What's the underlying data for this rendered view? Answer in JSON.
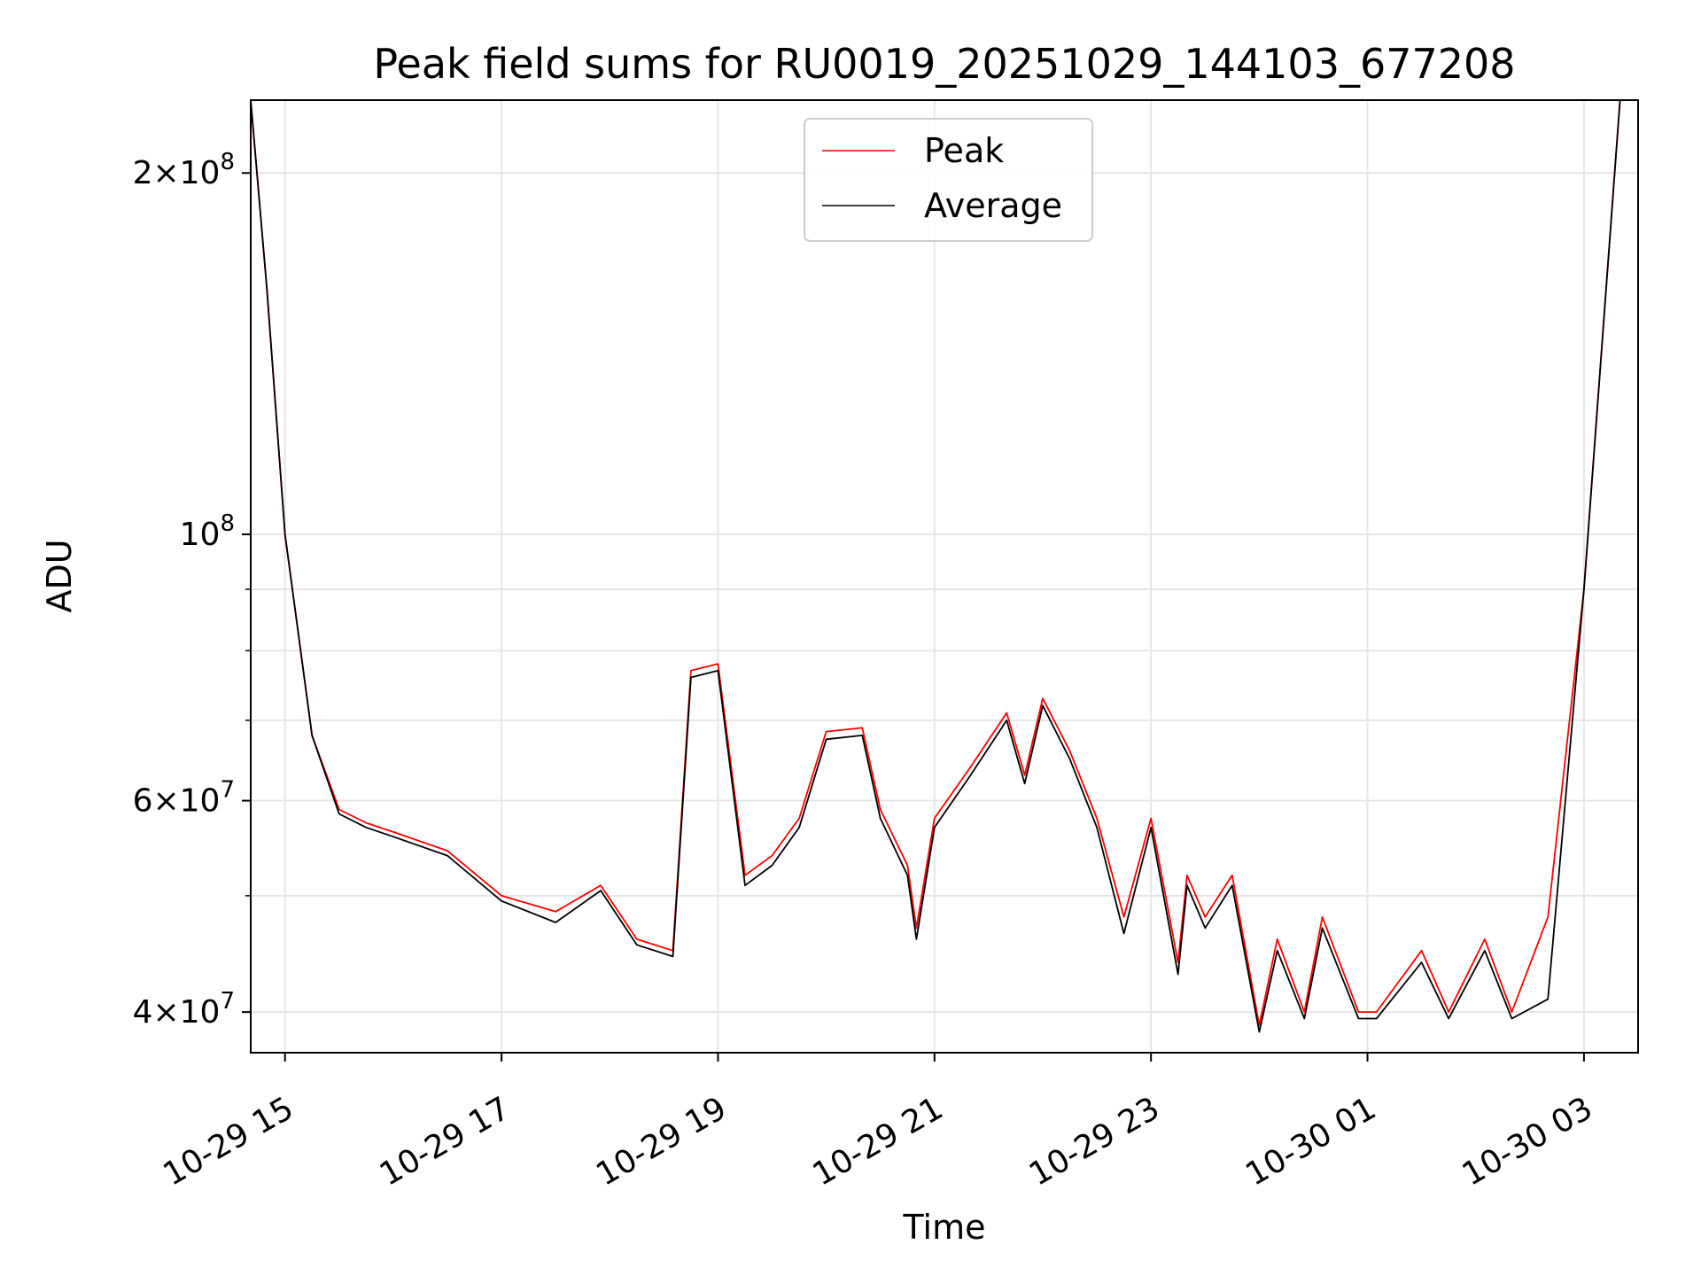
{
  "chart_data": {
    "type": "line",
    "title": "Peak field sums for RU0019_20251029_144103_677208",
    "xlabel": "Time",
    "ylabel": "ADU",
    "yscale": "log",
    "ylim": [
      37000000,
      230000000
    ],
    "xlim": [
      "2025-10-29 14:41",
      "2025-10-30 03:30"
    ],
    "grid": true,
    "legend": "top-center",
    "x_ticks": [
      "10-29 15",
      "10-29 17",
      "10-29 19",
      "10-29 21",
      "10-29 23",
      "10-30 01",
      "10-30 03"
    ],
    "y_ticks": [
      {
        "value": 40000000,
        "mantissa": "4",
        "exponent": "7"
      },
      {
        "value": 60000000,
        "mantissa": "6",
        "exponent": "7"
      },
      {
        "value": 100000000,
        "mantissa": "",
        "exponent": "8"
      },
      {
        "value": 200000000,
        "mantissa": "2",
        "exponent": "8"
      }
    ],
    "x": [
      "2025-10-29 14:41",
      "2025-10-29 14:50",
      "2025-10-29 15:00",
      "2025-10-29 15:15",
      "2025-10-29 15:30",
      "2025-10-29 15:45",
      "2025-10-29 16:00",
      "2025-10-29 16:30",
      "2025-10-29 17:00",
      "2025-10-29 17:30",
      "2025-10-29 17:55",
      "2025-10-29 18:15",
      "2025-10-29 18:35",
      "2025-10-29 18:45",
      "2025-10-29 19:00",
      "2025-10-29 19:15",
      "2025-10-29 19:30",
      "2025-10-29 19:45",
      "2025-10-29 20:00",
      "2025-10-29 20:20",
      "2025-10-29 20:30",
      "2025-10-29 20:45",
      "2025-10-29 20:50",
      "2025-10-29 21:00",
      "2025-10-29 21:20",
      "2025-10-29 21:40",
      "2025-10-29 21:50",
      "2025-10-29 22:00",
      "2025-10-29 22:15",
      "2025-10-29 22:30",
      "2025-10-29 22:45",
      "2025-10-29 23:00",
      "2025-10-29 23:15",
      "2025-10-29 23:20",
      "2025-10-29 23:30",
      "2025-10-29 23:45",
      "2025-10-30 00:00",
      "2025-10-30 00:10",
      "2025-10-30 00:25",
      "2025-10-30 00:35",
      "2025-10-30 00:55",
      "2025-10-30 01:05",
      "2025-10-30 01:30",
      "2025-10-30 01:45",
      "2025-10-30 02:05",
      "2025-10-30 02:20",
      "2025-10-30 02:40",
      "2025-10-30 03:00",
      "2025-10-30 03:20"
    ],
    "series": [
      {
        "name": "Peak",
        "color": "#ff0000",
        "values": [
          230000000,
          160000000,
          100000000,
          68000000,
          59000000,
          57500000,
          56500000,
          54500000,
          50000000,
          48500000,
          51000000,
          46000000,
          45000000,
          77000000,
          78000000,
          52000000,
          54000000,
          58000000,
          68500000,
          69000000,
          59000000,
          53000000,
          47000000,
          58000000,
          64000000,
          71000000,
          63000000,
          73000000,
          66000000,
          58000000,
          48000000,
          58000000,
          44000000,
          52000000,
          48000000,
          52000000,
          39000000,
          46000000,
          40000000,
          48000000,
          40000000,
          40000000,
          45000000,
          40000000,
          46000000,
          40000000,
          48000000,
          90000000,
          230000000
        ]
      },
      {
        "name": "Average",
        "color": "#000000",
        "values": [
          230000000,
          160000000,
          100000000,
          68000000,
          58500000,
          57000000,
          56000000,
          54000000,
          49500000,
          47500000,
          50500000,
          45500000,
          44500000,
          76000000,
          77000000,
          51000000,
          53000000,
          57000000,
          67500000,
          68000000,
          58000000,
          52000000,
          46000000,
          57000000,
          63000000,
          70000000,
          62000000,
          72000000,
          65000000,
          57000000,
          46500000,
          57000000,
          43000000,
          51000000,
          47000000,
          51000000,
          38500000,
          45000000,
          39500000,
          47000000,
          39500000,
          39500000,
          44000000,
          39500000,
          45000000,
          39500000,
          41000000,
          90000000,
          230000000
        ]
      }
    ]
  }
}
